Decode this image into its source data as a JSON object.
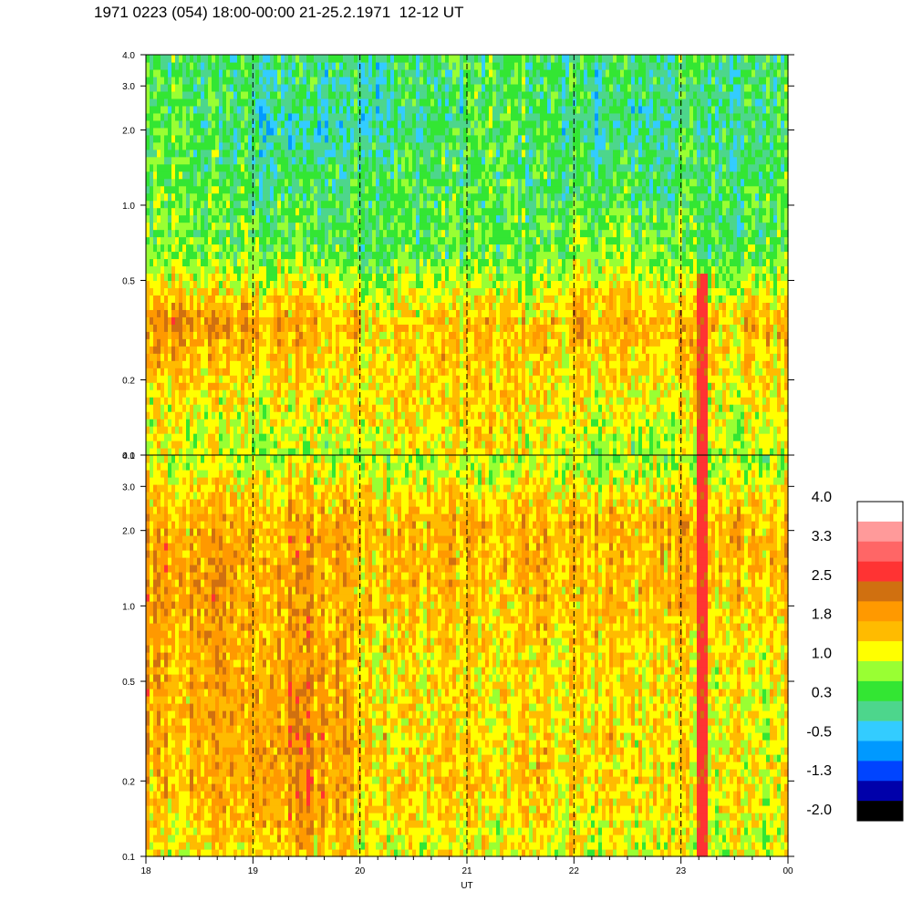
{
  "title": "1971 0223 (054) 18:00-00:00 21-25.2.1971  12-12 UT",
  "chart_data": {
    "type": "heatmap",
    "panels": [
      {
        "name": "upper",
        "y_scale": "log",
        "ylim": [
          0.1,
          4.0
        ],
        "y_ticks": [
          "0.1",
          "0.2",
          "0.5",
          "1.0",
          "2.0",
          "3.0",
          "4.0"
        ],
        "profile_by_hour": [
          {
            "hour": "18",
            "levels": [
              1.0,
              1.2,
              2.0,
              0.6,
              0.5,
              0.4,
              0.4
            ]
          },
          {
            "hour": "19",
            "levels": [
              0.8,
              1.3,
              1.7,
              0.6,
              0.2,
              -0.1,
              0.2
            ]
          },
          {
            "hour": "20",
            "levels": [
              1.2,
              1.4,
              1.5,
              0.5,
              0.4,
              0.1,
              0.3
            ]
          },
          {
            "hour": "21",
            "levels": [
              1.3,
              1.4,
              1.5,
              0.5,
              0.4,
              0.4,
              0.4
            ]
          },
          {
            "hour": "22",
            "levels": [
              0.8,
              1.2,
              1.7,
              0.8,
              0.3,
              0.0,
              0.2
            ]
          },
          {
            "hour": "23",
            "levels": [
              0.9,
              1.3,
              1.6,
              0.5,
              0.4,
              0.2,
              0.3
            ]
          }
        ]
      },
      {
        "name": "lower",
        "y_scale": "log",
        "ylim": [
          0.1,
          4.0
        ],
        "y_ticks": [
          "0.1",
          "0.2",
          "0.5",
          "1.0",
          "2.0",
          "3.0",
          "4.0"
        ],
        "profile_by_hour": [
          {
            "hour": "18",
            "levels": [
              1.2,
              1.6,
              1.7,
              1.8,
              1.9,
              1.7,
              0.9
            ]
          },
          {
            "hour": "19",
            "levels": [
              1.5,
              2.0,
              2.0,
              1.8,
              1.8,
              1.8,
              1.0
            ]
          },
          {
            "hour": "20",
            "levels": [
              1.2,
              1.5,
              1.4,
              1.4,
              1.6,
              1.7,
              0.9
            ]
          },
          {
            "hour": "21",
            "levels": [
              1.2,
              1.5,
              1.4,
              1.4,
              1.6,
              1.7,
              0.9
            ]
          },
          {
            "hour": "22",
            "levels": [
              1.1,
              1.4,
              1.4,
              1.4,
              1.6,
              1.7,
              0.8
            ]
          },
          {
            "hour": "23",
            "levels": [
              1.1,
              1.3,
              1.2,
              1.3,
              1.6,
              1.7,
              0.8
            ]
          }
        ]
      }
    ],
    "x_ticks": [
      "18",
      "19",
      "20",
      "21",
      "22",
      "23",
      "00"
    ],
    "xlim": [
      18,
      24
    ],
    "xlabel": "UT",
    "hour_markers": [
      19,
      20,
      21,
      22,
      23
    ],
    "event_band": {
      "hour": 23.2,
      "level": 2.6
    },
    "colorbar": {
      "range": [
        -2.0,
        4.0
      ],
      "labels": [
        "4.0",
        "3.3",
        "2.5",
        "1.8",
        "1.0",
        "0.3",
        "-0.5",
        "-1.3",
        "-2.0"
      ],
      "colors": [
        "#ffffff",
        "#ff9a9a",
        "#ff6666",
        "#ff3333",
        "#d07010",
        "#ff9900",
        "#ffbb00",
        "#ffff00",
        "#99ff33",
        "#33e633",
        "#4dd68c",
        "#33ccff",
        "#0099ff",
        "#0044ff",
        "#0000aa",
        "#000000"
      ]
    }
  }
}
